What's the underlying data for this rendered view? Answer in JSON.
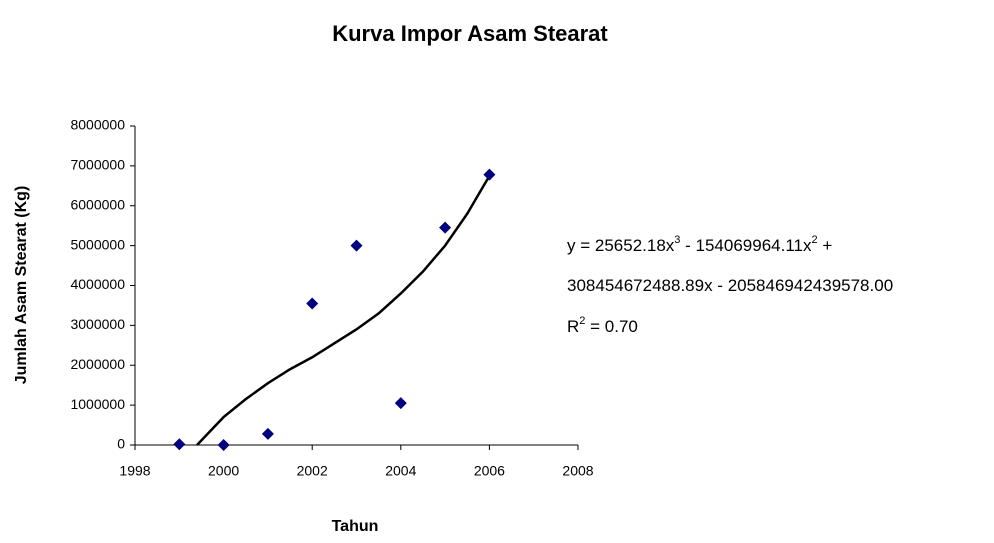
{
  "chart_data": {
    "type": "scatter",
    "title": "Kurva Impor Asam Stearat",
    "x_label": "Tahun",
    "y_label": "Jumlah Asam Stearat (Kg)",
    "series": [
      {
        "color": "#000080",
        "x": [
          1999,
          2000,
          2001,
          2002,
          2003,
          2004,
          2005,
          2006
        ],
        "values": [
          20000,
          0,
          280000,
          3550000,
          5000000,
          1050000,
          5450000,
          6780000
        ]
      }
    ],
    "trendline": {
      "color": "#000000",
      "x": [
        1999.4,
        2000,
        2000.5,
        2001,
        2001.5,
        2002,
        2002.5,
        2003,
        2003.5,
        2004,
        2004.5,
        2005,
        2005.5,
        2006
      ],
      "values": [
        0,
        700000,
        1150000,
        1550000,
        1900000,
        2200000,
        2550000,
        2900000,
        3300000,
        3800000,
        4350000,
        5000000,
        5800000,
        6750000
      ]
    },
    "annotation": [
      [
        "y = 25652.18x",
        "3",
        " - 154069964.11x",
        "2",
        " +"
      ],
      [
        "308454672488.89x - 205846942439578.00"
      ],
      [
        "R",
        "2",
        " = 0.70"
      ]
    ],
    "xlim": [
      1998,
      2008
    ],
    "xticks": [
      1998,
      2000,
      2002,
      2004,
      2006,
      2008
    ],
    "ylim": [
      0,
      8000000
    ],
    "yticks": [
      0,
      1000000,
      2000000,
      3000000,
      4000000,
      5000000,
      6000000,
      7000000,
      8000000
    ],
    "grid": false
  }
}
